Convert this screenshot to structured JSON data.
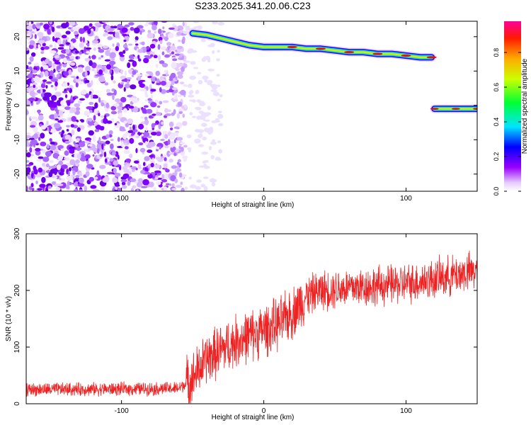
{
  "title": "S233.2025.341.20.06.C23",
  "chart_data": [
    {
      "type": "heatmap",
      "xlabel": "Height of straight line (km)",
      "ylabel": "Frequency (Hz)",
      "xlim": [
        -167,
        150
      ],
      "ylim": [
        -25,
        24.5
      ],
      "x_ticks": [
        -100,
        0,
        100
      ],
      "y_ticks": [
        -20,
        -10,
        0,
        10,
        20
      ],
      "colorbar": {
        "label": "Normalized spectral amplitude",
        "range": [
          0,
          0.98
        ],
        "ticks": [
          0,
          0.2,
          0.4,
          0.6,
          0.8
        ]
      },
      "noise_region_x": [
        -167,
        -55
      ],
      "signal_track": [
        {
          "x": -50,
          "y": 21
        },
        {
          "x": -40,
          "y": 20.5
        },
        {
          "x": -30,
          "y": 19.5
        },
        {
          "x": -20,
          "y": 18.5
        },
        {
          "x": -10,
          "y": 17.5
        },
        {
          "x": 0,
          "y": 17
        },
        {
          "x": 10,
          "y": 17
        },
        {
          "x": 20,
          "y": 17
        },
        {
          "x": 30,
          "y": 16.5
        },
        {
          "x": 40,
          "y": 16.5
        },
        {
          "x": 50,
          "y": 16
        },
        {
          "x": 60,
          "y": 15.5
        },
        {
          "x": 70,
          "y": 15.5
        },
        {
          "x": 80,
          "y": 15
        },
        {
          "x": 90,
          "y": 15
        },
        {
          "x": 100,
          "y": 14.5
        },
        {
          "x": 110,
          "y": 14
        },
        {
          "x": 118,
          "y": 14
        }
      ],
      "second_track": [
        {
          "x": 120,
          "y": -1
        },
        {
          "x": 135,
          "y": -1
        },
        {
          "x": 150,
          "y": -1
        }
      ]
    },
    {
      "type": "line",
      "xlabel": "Height of straight line (km)",
      "ylabel": "SNR (10 * v/v)",
      "xlim": [
        -167,
        150
      ],
      "ylim": [
        0,
        300
      ],
      "x_ticks": [
        -100,
        0,
        100
      ],
      "y_ticks": [
        0,
        100,
        200,
        300
      ],
      "color": "#ee2222",
      "trend": [
        {
          "x": -167,
          "y": 25
        },
        {
          "x": -100,
          "y": 26
        },
        {
          "x": -60,
          "y": 27
        },
        {
          "x": -50,
          "y": 45
        },
        {
          "x": -40,
          "y": 80
        },
        {
          "x": -30,
          "y": 95
        },
        {
          "x": -20,
          "y": 110
        },
        {
          "x": -10,
          "y": 120
        },
        {
          "x": 0,
          "y": 130
        },
        {
          "x": 10,
          "y": 140
        },
        {
          "x": 20,
          "y": 160
        },
        {
          "x": 30,
          "y": 190
        },
        {
          "x": 40,
          "y": 200
        },
        {
          "x": 60,
          "y": 205
        },
        {
          "x": 80,
          "y": 208
        },
        {
          "x": 100,
          "y": 212
        },
        {
          "x": 120,
          "y": 220
        },
        {
          "x": 150,
          "y": 235
        }
      ]
    }
  ]
}
